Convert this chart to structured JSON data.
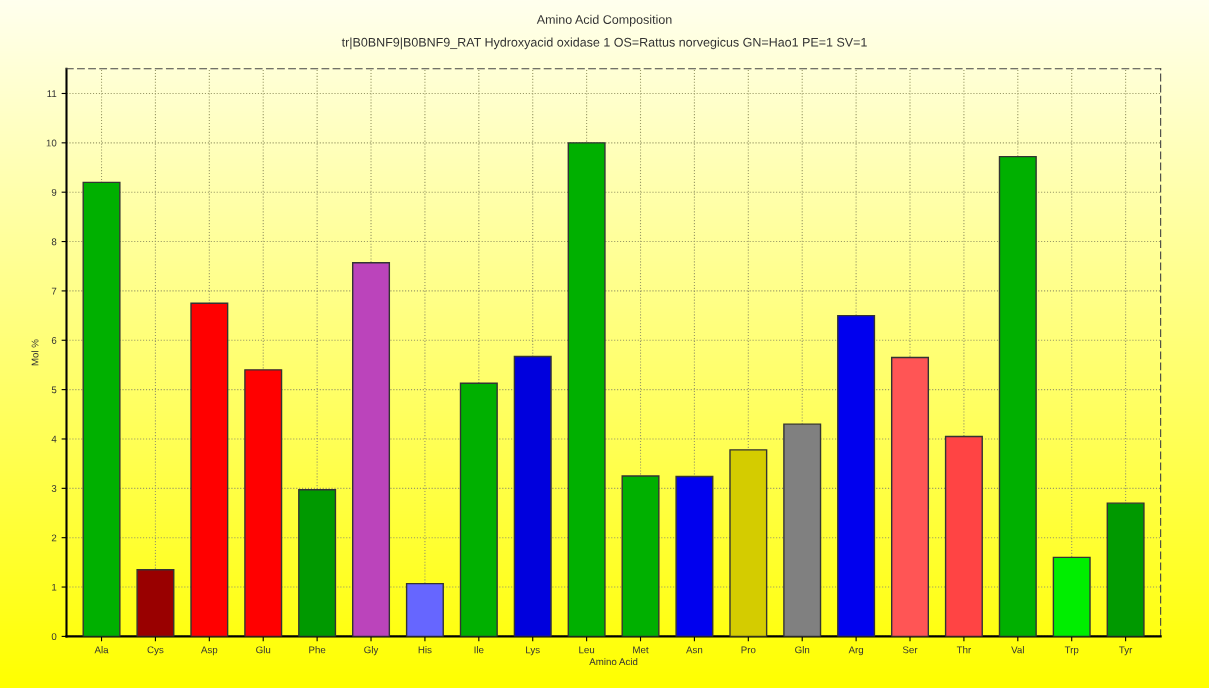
{
  "chart_data": {
    "type": "bar",
    "title": "Amino Acid Composition",
    "subtitle": "tr|B0BNF9|B0BNF9_RAT Hydroxyacid oxidase 1 OS=Rattus norvegicus GN=Hao1 PE=1 SV=1",
    "xlabel": "Amino Acid",
    "ylabel": "Mol %",
    "categories": [
      "Ala",
      "Cys",
      "Asp",
      "Glu",
      "Phe",
      "Gly",
      "His",
      "Ile",
      "Lys",
      "Leu",
      "Met",
      "Asn",
      "Pro",
      "Gln",
      "Arg",
      "Ser",
      "Thr",
      "Val",
      "Trp",
      "Tyr"
    ],
    "values": [
      9.2,
      1.35,
      6.75,
      5.4,
      2.97,
      7.57,
      1.07,
      5.13,
      5.67,
      10.0,
      3.25,
      3.24,
      3.78,
      4.3,
      6.5,
      5.65,
      4.05,
      9.72,
      1.6,
      2.7
    ],
    "colors": [
      "#00b000",
      "#990000",
      "#ff0000",
      "#ff0000",
      "#009900",
      "#bb44bb",
      "#6666ff",
      "#00b000",
      "#0000dd",
      "#00b000",
      "#00b000",
      "#0000ee",
      "#d4cc00",
      "#808080",
      "#0000ee",
      "#ff5555",
      "#ff4444",
      "#00b000",
      "#00ee00",
      "#009900"
    ],
    "ylim": [
      0,
      11.5
    ],
    "yticks": [
      0,
      1,
      2,
      3,
      4,
      5,
      6,
      7,
      8,
      9,
      10,
      11
    ],
    "grid": true
  }
}
